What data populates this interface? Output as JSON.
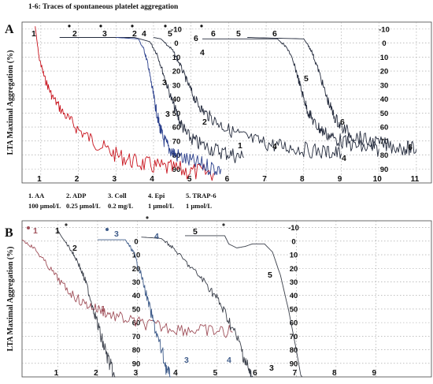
{
  "figure_title": "1-6: Traces of spontaneous platelet aggregation",
  "chart_data": [
    {
      "panel_label": "A",
      "type": "line",
      "ylabel": "LTA Maximal Aggregation (%)",
      "x_ticks": [
        "1",
        "2",
        "3",
        "4",
        "5",
        "6",
        "7",
        "8",
        "9",
        "10",
        "11"
      ],
      "xlim": [
        0.5,
        11.4
      ],
      "ylim": [
        -15,
        100
      ],
      "y_ticks": [
        "-10",
        "0",
        "10",
        "20",
        "30",
        "40",
        "50",
        "60",
        "70",
        "80",
        "90"
      ],
      "inner_y_ticks": [
        "-10",
        "0",
        "10",
        "20",
        "30",
        "40",
        "50",
        "60",
        "70",
        "80",
        "90"
      ],
      "outer_y_ticks": [
        "-10",
        "0",
        "10",
        "20",
        "30",
        "40",
        "50",
        "60",
        "70",
        "80",
        "90"
      ],
      "colors": {
        "dark": "#232a3c",
        "blue": "#2a3f8c",
        "red": "#c8141e",
        "grid": "#9a9a9a"
      },
      "series": [
        {
          "trace": "1",
          "color": "#c8141e",
          "noisy": true,
          "points": [
            [
              0.85,
              -12
            ],
            [
              0.95,
              10
            ],
            [
              1.1,
              25
            ],
            [
              1.3,
              38
            ],
            [
              1.6,
              50
            ],
            [
              2.0,
              62
            ],
            [
              2.5,
              72
            ],
            [
              3.0,
              80
            ],
            [
              3.5,
              85
            ],
            [
              4.0,
              88
            ],
            [
              4.5,
              90
            ],
            [
              5.0,
              92
            ],
            [
              5.6,
              93
            ]
          ]
        },
        {
          "trace": "2",
          "color": "#232a3c",
          "noisy": true,
          "points": [
            [
              1.5,
              -4
            ],
            [
              3.5,
              -4
            ],
            [
              3.9,
              -1
            ],
            [
              4.1,
              8
            ],
            [
              4.3,
              25
            ],
            [
              4.5,
              42
            ],
            [
              4.7,
              56
            ],
            [
              4.9,
              66
            ],
            [
              5.2,
              72
            ],
            [
              5.6,
              76
            ],
            [
              6.0,
              79
            ],
            [
              6.4,
              82
            ]
          ]
        },
        {
          "trace": "3",
          "color": "#2a3f8c",
          "noisy": true,
          "points": [
            [
              3.0,
              -4
            ],
            [
              3.6,
              -3
            ],
            [
              3.75,
              5
            ],
            [
              3.85,
              15
            ],
            [
              3.95,
              30
            ],
            [
              4.05,
              45
            ],
            [
              4.15,
              58
            ],
            [
              4.25,
              68
            ],
            [
              4.4,
              75
            ],
            [
              4.6,
              80
            ],
            [
              5.0,
              85
            ],
            [
              5.4,
              88
            ],
            [
              5.8,
              90
            ]
          ]
        },
        {
          "trace": "4",
          "color": "#232a3c",
          "noisy": true,
          "points": [
            [
              4.0,
              -4
            ],
            [
              4.2,
              -3
            ],
            [
              4.5,
              5
            ],
            [
              4.7,
              15
            ],
            [
              4.9,
              28
            ],
            [
              5.1,
              40
            ],
            [
              5.3,
              48
            ],
            [
              5.6,
              55
            ],
            [
              6.0,
              62
            ],
            [
              6.5,
              68
            ],
            [
              7.0,
              72
            ],
            [
              7.5,
              74
            ],
            [
              8.0,
              76
            ],
            [
              8.6,
              78
            ],
            [
              9.0,
              79
            ]
          ]
        },
        {
          "trace": "5",
          "color": "#232a3c",
          "noisy": true,
          "points": [
            [
              5.3,
              -3
            ],
            [
              7.3,
              -3
            ],
            [
              7.6,
              5
            ],
            [
              7.8,
              20
            ],
            [
              7.95,
              35
            ],
            [
              8.1,
              48
            ],
            [
              8.3,
              58
            ],
            [
              8.5,
              63
            ],
            [
              8.8,
              68
            ],
            [
              9.2,
              72
            ],
            [
              9.6,
              75
            ],
            [
              10,
              76
            ]
          ]
        },
        {
          "trace": "6",
          "color": "#232a3c",
          "noisy": true,
          "points": [
            [
              6.5,
              -4
            ],
            [
              8.0,
              -3
            ],
            [
              8.2,
              5
            ],
            [
              8.4,
              20
            ],
            [
              8.6,
              38
            ],
            [
              8.8,
              52
            ],
            [
              9.0,
              60
            ],
            [
              9.3,
              66
            ],
            [
              9.7,
              70
            ],
            [
              10.2,
              73
            ],
            [
              10.7,
              75
            ],
            [
              11.0,
              76
            ]
          ]
        }
      ],
      "trace_labels": {
        "top": [
          "1",
          "2",
          "3",
          "2",
          "4",
          "5",
          "6",
          "5",
          "6"
        ],
        "side": [
          "3",
          "3",
          "2",
          "1",
          "4",
          "5",
          "6",
          "4",
          "6"
        ]
      }
    },
    {
      "panel_label": "B",
      "type": "line",
      "ylabel": "LTA Maximal Aggregation (%)",
      "x_ticks": [
        "1",
        "2",
        "3",
        "4",
        "5",
        "6",
        "7",
        "8",
        "9"
      ],
      "xlim": [
        0.1,
        10.4
      ],
      "ylim": [
        -15,
        100
      ],
      "inner_y_ticks": [
        "0",
        "10",
        "20",
        "30",
        "40",
        "50",
        "60",
        "70",
        "80",
        "90"
      ],
      "outer_y_ticks": [
        "-10",
        "0",
        "10",
        "20",
        "30",
        "40",
        "50",
        "60",
        "70",
        "80",
        "90"
      ],
      "colors": {
        "dark": "#3a3f4a",
        "blue": "#3f5c8a",
        "red": "#a0505a",
        "grid": "#9a9a9a"
      },
      "legend": [
        {
          "name": "1. AA",
          "conc": "100 µmol/L"
        },
        {
          "name": "2. ADP",
          "conc": "0.25 µmol/L"
        },
        {
          "name": "3. Coll",
          "conc": "0.2 mg/L"
        },
        {
          "name": "4. Epi",
          "conc": "1 µmol/L"
        },
        {
          "name": "5. TRAP-6",
          "conc": "1 µmol/L"
        }
      ],
      "series": [
        {
          "trace": "1",
          "color": "#a0505a",
          "noisy": true,
          "points": [
            [
              0.1,
              -1
            ],
            [
              0.4,
              5
            ],
            [
              0.8,
              20
            ],
            [
              1.2,
              35
            ],
            [
              1.6,
              45
            ],
            [
              2.0,
              50
            ],
            [
              2.4,
              55
            ],
            [
              3.0,
              60
            ],
            [
              3.6,
              63
            ],
            [
              4.2,
              65
            ],
            [
              4.8,
              66
            ],
            [
              5.4,
              67
            ]
          ]
        },
        {
          "trace": "2",
          "color": "#3a3f4a",
          "noisy": true,
          "points": [
            [
              1.0,
              -8
            ],
            [
              1.1,
              -3
            ],
            [
              1.3,
              5
            ],
            [
              1.5,
              15
            ],
            [
              1.7,
              30
            ],
            [
              1.9,
              50
            ],
            [
              2.1,
              72
            ],
            [
              2.3,
              90
            ],
            [
              2.45,
              105
            ]
          ]
        },
        {
          "trace": "3",
          "color": "#3f5c8a",
          "noisy": true,
          "points": [
            [
              2.0,
              -1
            ],
            [
              2.7,
              -1
            ],
            [
              2.9,
              8
            ],
            [
              3.1,
              25
            ],
            [
              3.3,
              48
            ],
            [
              3.5,
              70
            ],
            [
              3.7,
              90
            ],
            [
              3.85,
              105
            ]
          ]
        },
        {
          "trace": "4",
          "color": "#3a3f4a",
          "noisy": true,
          "points": [
            [
              3.1,
              -3
            ],
            [
              3.6,
              -2
            ],
            [
              3.9,
              5
            ],
            [
              4.3,
              18
            ],
            [
              4.7,
              30
            ],
            [
              5.0,
              42
            ],
            [
              5.3,
              58
            ],
            [
              5.6,
              78
            ],
            [
              5.8,
              95
            ],
            [
              5.9,
              105
            ]
          ]
        },
        {
          "trace": "5",
          "color": "#3a3f4a",
          "noisy": false,
          "points": [
            [
              4.2,
              -4
            ],
            [
              5.2,
              -4
            ],
            [
              5.3,
              2
            ],
            [
              5.5,
              5
            ],
            [
              5.7,
              4
            ],
            [
              5.9,
              2
            ],
            [
              6.2,
              2
            ],
            [
              6.4,
              8
            ],
            [
              6.6,
              25
            ],
            [
              6.8,
              50
            ],
            [
              7.0,
              80
            ],
            [
              7.15,
              105
            ]
          ]
        }
      ],
      "trace_labels": {
        "top": [
          "1",
          "2",
          "3",
          "4",
          "5"
        ],
        "side": [
          "1",
          "2",
          "3",
          "4",
          "5",
          "3",
          "4",
          "5",
          "6",
          "7",
          "8",
          "9"
        ]
      }
    }
  ]
}
